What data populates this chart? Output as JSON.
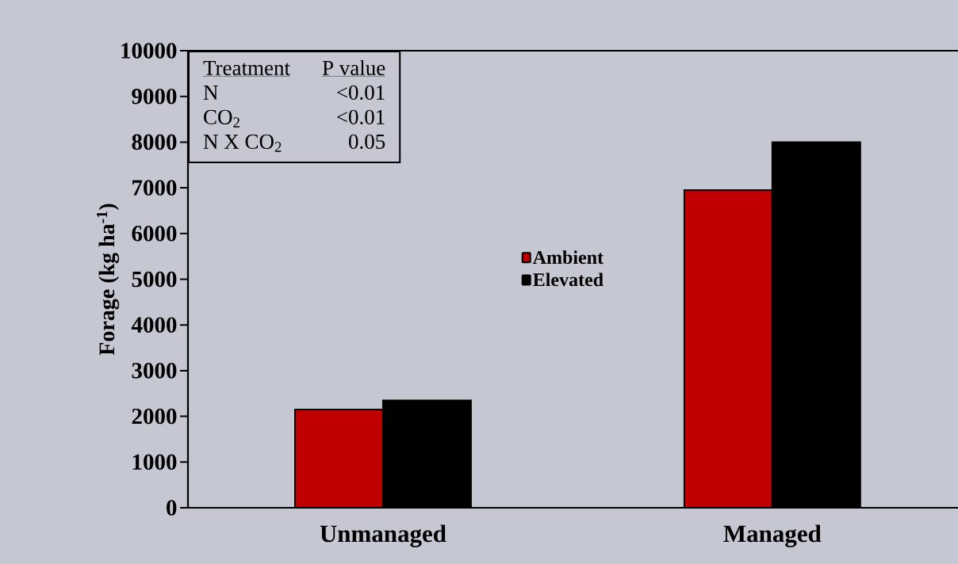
{
  "chart_data": {
    "type": "bar",
    "ylabel": "Forage (kg ha$^{-1}$)",
    "categories": [
      "Unmanaged",
      "Managed"
    ],
    "series": [
      {
        "name": "Ambient",
        "color": "#c00000",
        "values": [
          2150,
          6950
        ]
      },
      {
        "name": "Elevated",
        "color": "#000000",
        "values": [
          2350,
          8000
        ]
      }
    ],
    "ylim": [
      0,
      10000
    ],
    "yticks": [
      0,
      1000,
      2000,
      3000,
      4000,
      5000,
      6000,
      7000,
      8000,
      9000,
      10000
    ],
    "grid": false,
    "legend": "center",
    "annotations": [
      "Treatment",
      "P value",
      "N",
      "<0.01",
      "CO$_{2}$",
      "<0.01",
      "N X CO$_{2}$",
      "0.05"
    ]
  }
}
